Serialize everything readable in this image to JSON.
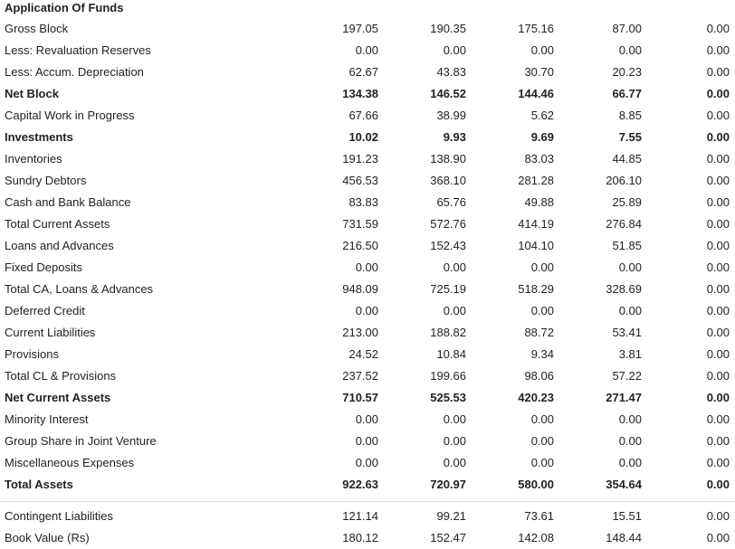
{
  "section_title": "Application Of Funds",
  "rows": [
    {
      "label": "Gross Block",
      "values": [
        "197.05",
        "190.35",
        "175.16",
        "87.00",
        "0.00"
      ],
      "bold": false
    },
    {
      "label": "Less: Revaluation Reserves",
      "values": [
        "0.00",
        "0.00",
        "0.00",
        "0.00",
        "0.00"
      ],
      "bold": false
    },
    {
      "label": "Less: Accum. Depreciation",
      "values": [
        "62.67",
        "43.83",
        "30.70",
        "20.23",
        "0.00"
      ],
      "bold": false
    },
    {
      "label": "Net Block",
      "values": [
        "134.38",
        "146.52",
        "144.46",
        "66.77",
        "0.00"
      ],
      "bold": true
    },
    {
      "label": "Capital Work in Progress",
      "values": [
        "67.66",
        "38.99",
        "5.62",
        "8.85",
        "0.00"
      ],
      "bold": false
    },
    {
      "label": "Investments",
      "values": [
        "10.02",
        "9.93",
        "9.69",
        "7.55",
        "0.00"
      ],
      "bold": true
    },
    {
      "label": "Inventories",
      "values": [
        "191.23",
        "138.90",
        "83.03",
        "44.85",
        "0.00"
      ],
      "bold": false
    },
    {
      "label": "Sundry Debtors",
      "values": [
        "456.53",
        "368.10",
        "281.28",
        "206.10",
        "0.00"
      ],
      "bold": false
    },
    {
      "label": "Cash and Bank Balance",
      "values": [
        "83.83",
        "65.76",
        "49.88",
        "25.89",
        "0.00"
      ],
      "bold": false
    },
    {
      "label": "Total Current Assets",
      "values": [
        "731.59",
        "572.76",
        "414.19",
        "276.84",
        "0.00"
      ],
      "bold": false
    },
    {
      "label": "Loans and Advances",
      "values": [
        "216.50",
        "152.43",
        "104.10",
        "51.85",
        "0.00"
      ],
      "bold": false
    },
    {
      "label": "Fixed Deposits",
      "values": [
        "0.00",
        "0.00",
        "0.00",
        "0.00",
        "0.00"
      ],
      "bold": false
    },
    {
      "label": "Total CA, Loans & Advances",
      "values": [
        "948.09",
        "725.19",
        "518.29",
        "328.69",
        "0.00"
      ],
      "bold": false
    },
    {
      "label": "Deferred Credit",
      "values": [
        "0.00",
        "0.00",
        "0.00",
        "0.00",
        "0.00"
      ],
      "bold": false
    },
    {
      "label": "Current Liabilities",
      "values": [
        "213.00",
        "188.82",
        "88.72",
        "53.41",
        "0.00"
      ],
      "bold": false
    },
    {
      "label": "Provisions",
      "values": [
        "24.52",
        "10.84",
        "9.34",
        "3.81",
        "0.00"
      ],
      "bold": false
    },
    {
      "label": "Total CL & Provisions",
      "values": [
        "237.52",
        "199.66",
        "98.06",
        "57.22",
        "0.00"
      ],
      "bold": false
    },
    {
      "label": "Net Current Assets",
      "values": [
        "710.57",
        "525.53",
        "420.23",
        "271.47",
        "0.00"
      ],
      "bold": true
    },
    {
      "label": "Minority Interest",
      "values": [
        "0.00",
        "0.00",
        "0.00",
        "0.00",
        "0.00"
      ],
      "bold": false
    },
    {
      "label": "Group Share in Joint Venture",
      "values": [
        "0.00",
        "0.00",
        "0.00",
        "0.00",
        "0.00"
      ],
      "bold": false
    },
    {
      "label": "Miscellaneous Expenses",
      "values": [
        "0.00",
        "0.00",
        "0.00",
        "0.00",
        "0.00"
      ],
      "bold": false
    },
    {
      "label": "Total Assets",
      "values": [
        "922.63",
        "720.97",
        "580.00",
        "354.64",
        "0.00"
      ],
      "bold": true
    }
  ],
  "footer_rows": [
    {
      "label": "Contingent Liabilities",
      "values": [
        "121.14",
        "99.21",
        "73.61",
        "15.51",
        "0.00"
      ],
      "bold": false
    },
    {
      "label": "Book Value (Rs)",
      "values": [
        "180.12",
        "152.47",
        "142.08",
        "148.44",
        "0.00"
      ],
      "bold": false
    }
  ]
}
